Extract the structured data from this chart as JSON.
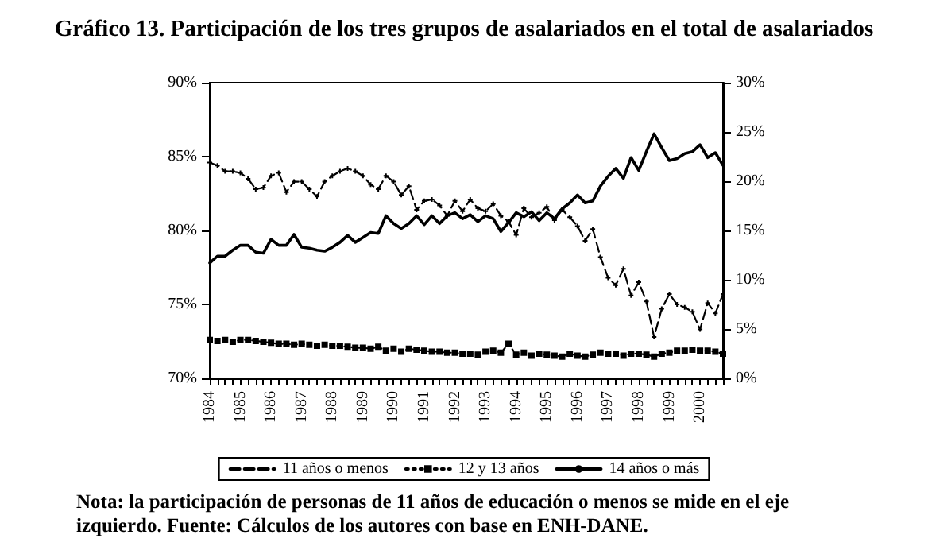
{
  "chart_data": {
    "type": "line",
    "title": "Gráfico 13. Participación de los tres grupos de asalariados en el total de asalariados",
    "categories": [
      "1984",
      null,
      null,
      null,
      "1985",
      null,
      null,
      null,
      "1986",
      null,
      null,
      null,
      "1987",
      null,
      null,
      null,
      "1988",
      null,
      null,
      null,
      "1989",
      null,
      null,
      null,
      "1990",
      null,
      null,
      null,
      "1991",
      null,
      null,
      null,
      "1992",
      null,
      null,
      null,
      "1993",
      null,
      null,
      null,
      "1994",
      null,
      null,
      null,
      "1995",
      null,
      null,
      null,
      "1996",
      null,
      null,
      null,
      "1997",
      null,
      null,
      null,
      "1998",
      null,
      null,
      null,
      "1999",
      null,
      null,
      null,
      "2000",
      null,
      null,
      null
    ],
    "series": [
      {
        "name": "11 años o menos",
        "color": "#000000",
        "line_style": "dashed",
        "marker": "cross",
        "values": [
          84.6,
          84.4,
          84.0,
          84.0,
          83.9,
          83.5,
          82.8,
          82.9,
          83.7,
          83.9,
          82.6,
          83.3,
          83.3,
          82.8,
          82.3,
          83.3,
          83.7,
          84.0,
          84.2,
          84.0,
          83.7,
          83.1,
          82.8,
          83.7,
          83.3,
          82.4,
          83.0,
          81.4,
          82.0,
          82.1,
          81.7,
          81.0,
          82.0,
          81.3,
          82.1,
          81.5,
          81.3,
          81.8,
          81.0,
          80.6,
          79.7,
          81.5,
          80.9,
          81.2,
          81.6,
          80.7,
          81.4,
          80.9,
          80.3,
          79.3,
          80.1,
          78.2,
          76.8,
          76.3,
          77.4,
          75.6,
          76.5,
          75.2,
          72.8,
          74.7,
          75.7,
          75.0,
          74.8,
          74.5,
          73.3,
          75.1,
          74.4,
          75.7
        ]
      },
      {
        "name": "12 y 13 años",
        "color": "#000000",
        "axis": "y2",
        "line_style": "dotted",
        "marker": "square",
        "values": [
          3.9,
          3.8,
          3.9,
          3.7,
          3.9,
          3.9,
          3.8,
          3.7,
          3.6,
          3.5,
          3.5,
          3.4,
          3.5,
          3.4,
          3.3,
          3.4,
          3.3,
          3.3,
          3.2,
          3.1,
          3.1,
          3.0,
          3.2,
          2.8,
          3.0,
          2.7,
          3.0,
          2.9,
          2.8,
          2.7,
          2.7,
          2.6,
          2.6,
          2.5,
          2.5,
          2.4,
          2.7,
          2.8,
          2.6,
          3.5,
          2.4,
          2.6,
          2.3,
          2.5,
          2.4,
          2.3,
          2.2,
          2.5,
          2.3,
          2.2,
          2.4,
          2.6,
          2.5,
          2.5,
          2.3,
          2.5,
          2.5,
          2.4,
          2.2,
          2.5,
          2.6,
          2.8,
          2.8,
          2.9,
          2.8,
          2.8,
          2.7,
          2.5
        ]
      },
      {
        "name": "14 años o más",
        "color": "#000000",
        "axis": "y2",
        "line_style": "solid",
        "marker": "none",
        "values": [
          11.7,
          12.4,
          12.4,
          13.0,
          13.5,
          13.5,
          12.8,
          12.7,
          14.1,
          13.5,
          13.5,
          14.6,
          13.3,
          13.2,
          13.0,
          12.9,
          13.3,
          13.8,
          14.5,
          13.8,
          14.3,
          14.8,
          14.7,
          16.5,
          15.7,
          15.2,
          15.7,
          16.5,
          15.6,
          16.5,
          15.7,
          16.5,
          16.8,
          16.2,
          16.6,
          15.9,
          16.5,
          16.2,
          14.9,
          15.8,
          16.8,
          16.4,
          16.9,
          16.0,
          16.8,
          16.2,
          17.2,
          17.8,
          18.6,
          17.8,
          18.0,
          19.5,
          20.5,
          21.3,
          20.3,
          22.4,
          21.1,
          23.0,
          24.8,
          23.4,
          22.1,
          22.3,
          22.8,
          23.0,
          23.7,
          22.4,
          22.9,
          21.6
        ]
      }
    ],
    "ylim": [
      70,
      90
    ],
    "yticks": [
      {
        "value": 70,
        "label": "70%"
      },
      {
        "value": 75,
        "label": "75%"
      },
      {
        "value": 80,
        "label": "80%"
      },
      {
        "value": 85,
        "label": "85%"
      },
      {
        "value": 90,
        "label": "90%"
      }
    ],
    "y2lim": [
      0,
      30
    ],
    "y2ticks": [
      {
        "value": 0,
        "label": "0%"
      },
      {
        "value": 5,
        "label": "5%"
      },
      {
        "value": 10,
        "label": "10%"
      },
      {
        "value": 15,
        "label": "15%"
      },
      {
        "value": 20,
        "label": "20%"
      },
      {
        "value": 25,
        "label": "25%"
      },
      {
        "value": 30,
        "label": "30%"
      }
    ],
    "legend": "bottom",
    "annotations": [
      "Nota: la participación de personas de 11 años de educación o menos se mide en el eje izquierdo. Fuente: Cálculos de los autores con base en ENH-DANE."
    ]
  }
}
